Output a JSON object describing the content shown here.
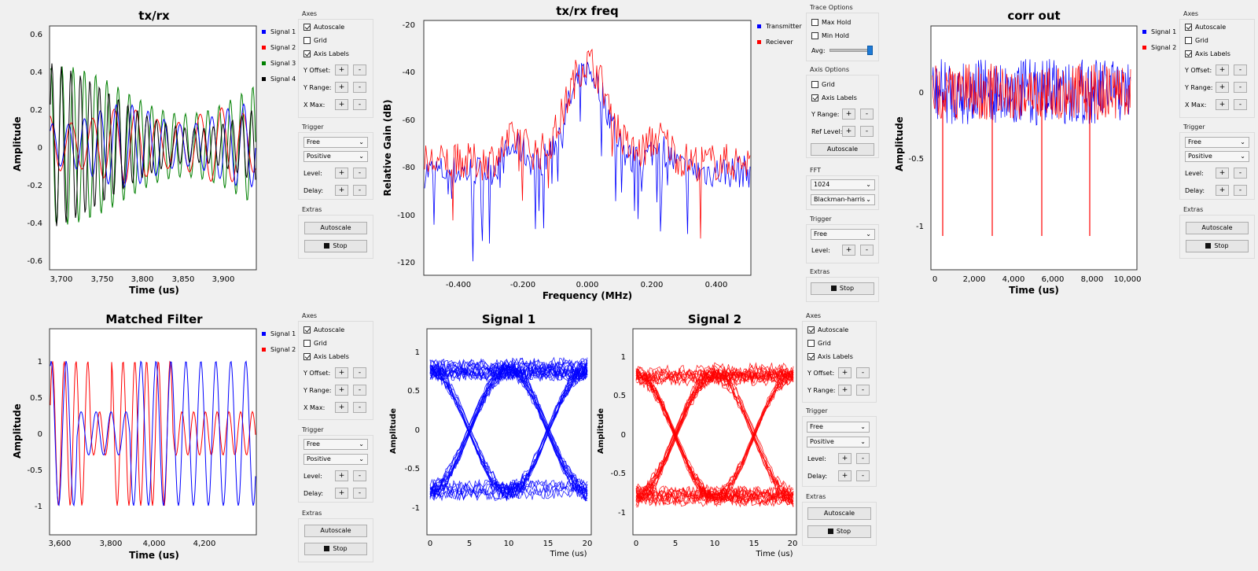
{
  "colors": {
    "blue": "#0000ff",
    "red": "#ff0000",
    "green": "#008000",
    "black": "#000000",
    "plot_bg": "#ffffff",
    "panel_bg": "#f0f0f0",
    "slider_knob": "#1e7ad6"
  },
  "panels": {
    "txrx": {
      "title": "tx/rx",
      "xlabel": "Time (us)",
      "ylabel": "Amplitude",
      "yticks": [
        "0.6",
        "0.4",
        "0.2",
        "0",
        "-0.2",
        "-0.4",
        "-0.6"
      ],
      "xticks": [
        "3,700",
        "3,750",
        "3,800",
        "3,850",
        "3,900"
      ],
      "legend": [
        "Signal 1",
        "Signal 2",
        "Signal 3",
        "Signal 4"
      ]
    },
    "freq": {
      "title": "tx/rx freq",
      "xlabel": "Frequency (MHz)",
      "ylabel": "Relative Gain (dB)",
      "yticks": [
        "-20",
        "-40",
        "-60",
        "-80",
        "-100",
        "-120"
      ],
      "xticks": [
        "-0.400",
        "-0.200",
        "0.000",
        "0.200",
        "0.400"
      ],
      "legend": [
        "Transmitter",
        "Reciever"
      ]
    },
    "corr": {
      "title": "corr out",
      "xlabel": "Time (us)",
      "ylabel": "Amplitude",
      "yticks": [
        "0",
        "-0.5",
        "-1"
      ],
      "xticks": [
        "0",
        "2,000",
        "4,000",
        "6,000",
        "8,000",
        "10,000"
      ],
      "legend": [
        "Signal 1",
        "Signal 2"
      ]
    },
    "mf": {
      "title": "Matched Filter",
      "xlabel": "Time (us)",
      "ylabel": "Amplitude",
      "yticks": [
        "1",
        "0.5",
        "0",
        "-0.5",
        "-1"
      ],
      "xticks": [
        "3,600",
        "3,800",
        "4,000",
        "4,200"
      ],
      "legend": [
        "Signal 1",
        "Signal 2"
      ]
    },
    "eye1": {
      "title": "Signal 1",
      "xlabel": "Time (us)",
      "ylabel": "Amplitude",
      "yticks": [
        "1",
        "0.5",
        "0",
        "-0.5",
        "-1"
      ],
      "xticks": [
        "0",
        "5",
        "10",
        "15",
        "20"
      ]
    },
    "eye2": {
      "title": "Signal 2",
      "xlabel": "Time (us)",
      "ylabel": "Amplitude",
      "yticks": [
        "1",
        "0.5",
        "0",
        "-0.5",
        "-1"
      ],
      "xticks": [
        "0",
        "5",
        "10",
        "15",
        "20"
      ]
    }
  },
  "controls": {
    "axes": {
      "title": "Axes",
      "autoscale": "Autoscale",
      "grid": "Grid",
      "axis_labels": "Axis Labels",
      "y_offset": "Y Offset:",
      "y_range": "Y Range:",
      "x_max": "X Max:"
    },
    "trigger": {
      "title": "Trigger",
      "mode": "Free",
      "slope": "Positive",
      "level": "Level:",
      "delay": "Delay:"
    },
    "extras": {
      "title": "Extras",
      "autoscale": "Autoscale",
      "stop": "Stop"
    },
    "plus": "+",
    "minus": "-",
    "trace": {
      "title": "Trace Options",
      "max_hold": "Max Hold",
      "min_hold": "Min Hold",
      "avg": "Avg:"
    },
    "axis_options": {
      "title": "Axis Options",
      "grid": "Grid",
      "axis_labels": "Axis Labels",
      "y_range": "Y Range:",
      "ref_level": "Ref Level:",
      "autoscale": "Autoscale"
    },
    "fft": {
      "title": "FFT",
      "size": "1024",
      "window": "Blackman-harris"
    },
    "freq_trigger": {
      "title": "Trigger",
      "mode": "Free",
      "level": "Level:"
    }
  },
  "chart_data": [
    {
      "type": "line",
      "title": "tx/rx",
      "xlabel": "Time (us)",
      "ylabel": "Amplitude",
      "xlim": [
        3680,
        3945
      ],
      "ylim": [
        -0.63,
        0.63
      ],
      "series": [
        {
          "name": "Signal 1",
          "approx": "sinusoid amplitude ~0.2"
        },
        {
          "name": "Signal 2",
          "approx": "sinusoid amplitude ~0.2"
        },
        {
          "name": "Signal 3",
          "approx": "sinusoid amplitude ~0.4"
        },
        {
          "name": "Signal 4",
          "approx": "sinusoid amplitude ~0.45"
        }
      ]
    },
    {
      "type": "line",
      "title": "tx/rx freq",
      "xlabel": "Frequency (MHz)",
      "ylabel": "Relative Gain (dB)",
      "xlim": [
        -0.5,
        0.5
      ],
      "ylim": [
        -125,
        -18
      ],
      "series": [
        {
          "name": "Transmitter",
          "peak_db": -38,
          "floor_db": -80
        },
        {
          "name": "Reciever",
          "peak_db": -30,
          "floor_db": -78
        }
      ]
    },
    {
      "type": "line",
      "title": "corr out",
      "xlabel": "Time (us)",
      "ylabel": "Amplitude",
      "xlim": [
        -200,
        10300
      ],
      "ylim": [
        -1.28,
        0.32
      ],
      "series": [
        {
          "name": "Signal 1",
          "approx": "noise ±0.2"
        },
        {
          "name": "Signal 2",
          "approx": "noise ±0.2",
          "spikes_x": [
            500,
            3000,
            5700,
            8100
          ],
          "spike_y": -1.08
        }
      ]
    },
    {
      "type": "line",
      "title": "Matched Filter",
      "xlabel": "Time (us)",
      "ylabel": "Amplitude",
      "xlim": [
        3580,
        4390
      ],
      "ylim": [
        -1.35,
        1.45
      ],
      "series": [
        {
          "name": "Signal 1",
          "range": [
            -1,
            1
          ]
        },
        {
          "name": "Signal 2",
          "range": [
            -1,
            1
          ]
        }
      ]
    },
    {
      "type": "line",
      "title": "Signal 1",
      "subtype": "eye diagram",
      "xlabel": "Time (us)",
      "ylabel": "Amplitude",
      "xlim": [
        -1,
        21
      ],
      "ylim": [
        -1.3,
        1.3
      ],
      "eye_center": 10
    },
    {
      "type": "line",
      "title": "Signal 2",
      "subtype": "eye diagram",
      "xlabel": "Time (us)",
      "ylabel": "Amplitude",
      "xlim": [
        -1,
        21
      ],
      "ylim": [
        -1.3,
        1.3
      ],
      "eye_center": 10
    }
  ]
}
